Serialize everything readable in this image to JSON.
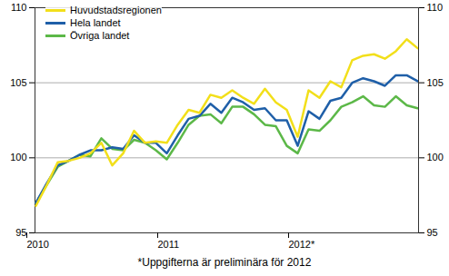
{
  "chart_data": {
    "type": "line",
    "caption": "*Uppgifterna är preliminära för 2012",
    "categories": [
      "2010",
      null,
      null,
      null,
      null,
      null,
      null,
      null,
      null,
      null,
      null,
      null,
      "2011",
      null,
      null,
      null,
      null,
      null,
      null,
      null,
      null,
      null,
      null,
      null,
      "2012*",
      null,
      null,
      null,
      null,
      null,
      null,
      null,
      null,
      null,
      null,
      null
    ],
    "series": [
      {
        "name": "Huvudstadsregionen",
        "color": "#f2df1a",
        "values": [
          96.8,
          98.2,
          99.7,
          99.8,
          100.0,
          100.3,
          101.0,
          99.5,
          100.3,
          101.8,
          101.0,
          101.1,
          101.0,
          102.2,
          103.2,
          103.0,
          104.2,
          104.0,
          104.5,
          104.0,
          103.6,
          104.6,
          103.7,
          103.2,
          101.4,
          104.5,
          104.0,
          105.1,
          104.7,
          106.5,
          106.8,
          106.9,
          106.6,
          107.1,
          107.9,
          107.3
        ]
      },
      {
        "name": "Hela landet",
        "color": "#1f5fa8",
        "values": [
          97.0,
          98.3,
          99.5,
          99.8,
          100.2,
          100.5,
          100.5,
          100.7,
          100.6,
          101.5,
          101.0,
          101.0,
          100.3,
          101.5,
          102.6,
          102.8,
          103.6,
          103.0,
          104.0,
          103.7,
          103.2,
          103.3,
          102.5,
          102.5,
          100.8,
          103.1,
          102.6,
          103.8,
          104.0,
          105.0,
          105.3,
          105.1,
          104.8,
          105.5,
          105.5,
          105.1
        ]
      },
      {
        "name": "Övriga landet",
        "color": "#5cb848",
        "values": [
          97.0,
          98.2,
          99.4,
          99.8,
          100.2,
          100.1,
          101.3,
          100.6,
          100.5,
          101.2,
          101.0,
          100.5,
          99.9,
          101.0,
          102.2,
          102.8,
          102.9,
          102.3,
          103.4,
          103.4,
          102.9,
          102.2,
          102.1,
          100.8,
          100.3,
          101.9,
          101.8,
          102.5,
          103.4,
          103.7,
          104.1,
          103.5,
          103.4,
          104.1,
          103.5,
          103.3
        ]
      }
    ],
    "ylim": [
      95,
      110
    ],
    "yticks": [
      95,
      100,
      105,
      110
    ],
    "grid": true,
    "legend": "top-left"
  }
}
